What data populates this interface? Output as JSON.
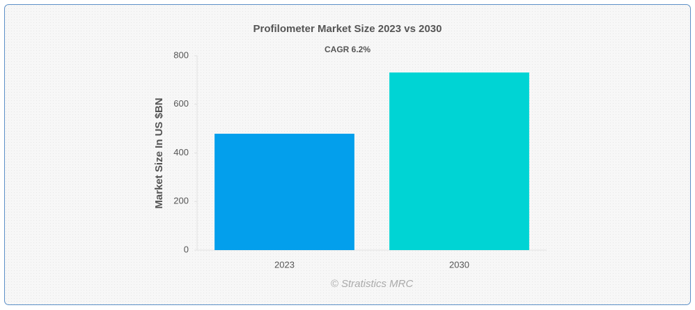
{
  "chart_data": {
    "type": "bar",
    "title": "Profilometer Market Size 2023 vs 2030",
    "annotation": "CAGR 6.2%",
    "ylabel": "Market Size In US $BN",
    "categories": [
      "2023",
      "2030"
    ],
    "values": [
      479,
      731
    ],
    "colors": [
      "#039fec",
      "#00d4d4"
    ],
    "ylim": [
      0,
      800
    ],
    "yticks": [
      0,
      200,
      400,
      600,
      800
    ],
    "source": "© Stratistics MRC"
  }
}
